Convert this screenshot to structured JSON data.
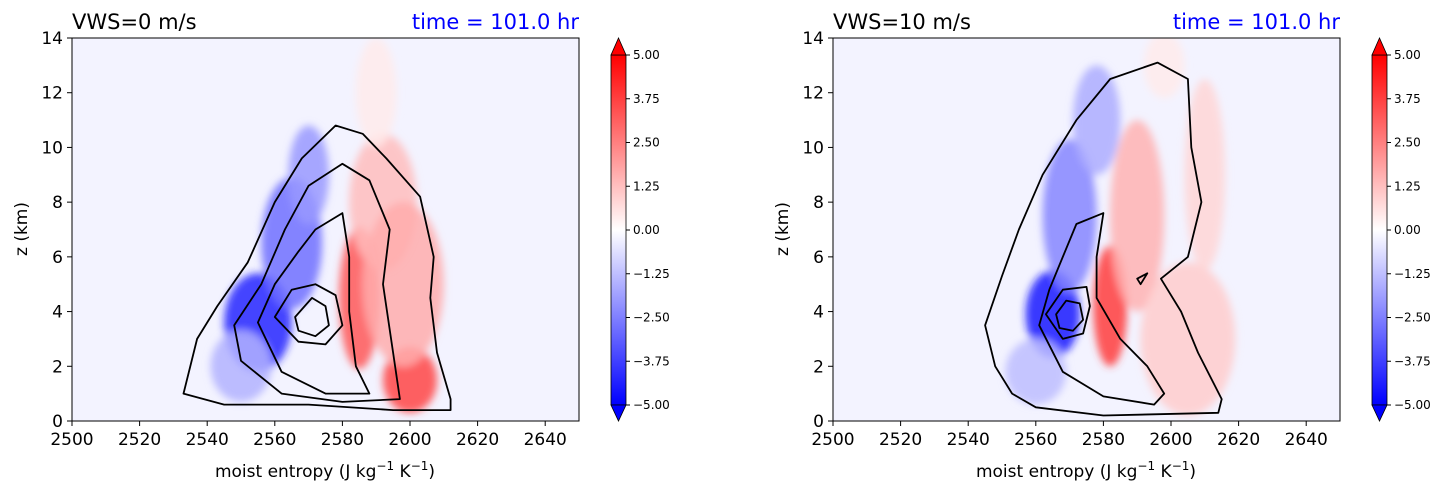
{
  "chart_data": [
    {
      "type": "heatmap",
      "title_left": "VWS=0 m/s",
      "title_right": "time = 101.0 hr",
      "xlabel_main": "moist entropy (J kg",
      "xlabel_sup1": "−1",
      "xlabel_mid": " K",
      "xlabel_sup2": "−1",
      "xlabel_end": ")",
      "ylabel": "z (km)",
      "xlim": [
        2500,
        2650
      ],
      "ylim": [
        0,
        14
      ],
      "xticks": [
        "2500",
        "2520",
        "2540",
        "2560",
        "2580",
        "2600",
        "2620",
        "2640"
      ],
      "yticks": [
        "0",
        "2",
        "4",
        "6",
        "8",
        "10",
        "12",
        "14"
      ],
      "colorbar": {
        "range": [
          -5,
          5
        ],
        "ticks": [
          "5.00",
          "3.75",
          "2.50",
          "1.25",
          "0.00",
          "−1.25",
          "−2.50",
          "−3.75",
          "−5.00"
        ]
      },
      "blobs": [
        {
          "x": 2555,
          "y": 3.6,
          "rx": 10,
          "ry": 1.8,
          "v": -4.3
        },
        {
          "x": 2565,
          "y": 6.5,
          "rx": 9,
          "ry": 2.4,
          "v": -2.8
        },
        {
          "x": 2570,
          "y": 9.0,
          "rx": 6,
          "ry": 1.8,
          "v": -2.0
        },
        {
          "x": 2550,
          "y": 2.0,
          "rx": 9,
          "ry": 1.3,
          "v": -1.5
        },
        {
          "x": 2585,
          "y": 4.5,
          "rx": 6,
          "ry": 2.6,
          "v": 3.3
        },
        {
          "x": 2600,
          "y": 1.5,
          "rx": 8,
          "ry": 1.2,
          "v": 3.6
        },
        {
          "x": 2592,
          "y": 8.0,
          "rx": 10,
          "ry": 2.5,
          "v": 1.3
        },
        {
          "x": 2598,
          "y": 5.0,
          "rx": 12,
          "ry": 3.0,
          "v": 1.6
        },
        {
          "x": 2590,
          "y": 12.0,
          "rx": 6,
          "ry": 2.0,
          "v": 0.4
        }
      ],
      "contours": [
        [
          [
            2533,
            1.0
          ],
          [
            2537,
            3.0
          ],
          [
            2543,
            4.2
          ],
          [
            2552,
            5.8
          ],
          [
            2560,
            8.0
          ],
          [
            2568,
            9.6
          ],
          [
            2578,
            10.8
          ],
          [
            2586,
            10.5
          ],
          [
            2593,
            9.6
          ],
          [
            2603,
            8.2
          ],
          [
            2607,
            6.0
          ],
          [
            2606,
            4.5
          ],
          [
            2608,
            2.5
          ],
          [
            2612,
            0.8
          ],
          [
            2612,
            0.4
          ],
          [
            2595,
            0.4
          ],
          [
            2570,
            0.6
          ],
          [
            2545,
            0.6
          ],
          [
            2533,
            1.0
          ]
        ],
        [
          [
            2548,
            3.5
          ],
          [
            2556,
            5.0
          ],
          [
            2563,
            7.0
          ],
          [
            2570,
            8.6
          ],
          [
            2580,
            9.4
          ],
          [
            2588,
            8.8
          ],
          [
            2594,
            7.0
          ],
          [
            2592,
            5.0
          ],
          [
            2595,
            2.5
          ],
          [
            2597,
            0.8
          ],
          [
            2580,
            0.7
          ],
          [
            2562,
            1.0
          ],
          [
            2550,
            2.2
          ],
          [
            2548,
            3.5
          ]
        ],
        [
          [
            2555,
            3.6
          ],
          [
            2560,
            5.0
          ],
          [
            2567,
            6.2
          ],
          [
            2572,
            7.0
          ],
          [
            2580,
            7.6
          ],
          [
            2582,
            6.0
          ],
          [
            2582,
            4.0
          ],
          [
            2584,
            2.0
          ],
          [
            2588,
            1.0
          ],
          [
            2575,
            1.0
          ],
          [
            2562,
            1.8
          ],
          [
            2555,
            3.6
          ]
        ],
        [
          [
            2560,
            3.8
          ],
          [
            2565,
            4.8
          ],
          [
            2572,
            5.0
          ],
          [
            2578,
            4.6
          ],
          [
            2580,
            3.5
          ],
          [
            2575,
            2.8
          ],
          [
            2567,
            2.9
          ],
          [
            2560,
            3.8
          ]
        ],
        [
          [
            2566,
            3.8
          ],
          [
            2571,
            4.5
          ],
          [
            2575,
            4.2
          ],
          [
            2576,
            3.5
          ],
          [
            2572,
            3.1
          ],
          [
            2567,
            3.3
          ],
          [
            2566,
            3.8
          ]
        ]
      ]
    },
    {
      "type": "heatmap",
      "title_left": "VWS=10 m/s",
      "title_right": "time = 101.0 hr",
      "xlabel_main": "moist entropy (J kg",
      "xlabel_sup1": "−1",
      "xlabel_mid": " K",
      "xlabel_sup2": "−1",
      "xlabel_end": ")",
      "ylabel": "z (km)",
      "xlim": [
        2500,
        2650
      ],
      "ylim": [
        0,
        14
      ],
      "xticks": [
        "2500",
        "2520",
        "2540",
        "2560",
        "2580",
        "2600",
        "2620",
        "2640"
      ],
      "yticks": [
        "0",
        "2",
        "4",
        "6",
        "8",
        "10",
        "12",
        "14"
      ],
      "colorbar": {
        "range": [
          -5,
          5
        ],
        "ticks": [
          "5.00",
          "3.75",
          "2.50",
          "1.25",
          "0.00",
          "−1.25",
          "−2.50",
          "−3.75",
          "−5.00"
        ]
      },
      "blobs": [
        {
          "x": 2565,
          "y": 3.9,
          "rx": 8,
          "ry": 1.6,
          "v": -4.5
        },
        {
          "x": 2570,
          "y": 7.5,
          "rx": 8,
          "ry": 2.8,
          "v": -2.4
        },
        {
          "x": 2578,
          "y": 11.0,
          "rx": 7,
          "ry": 2.0,
          "v": -1.6
        },
        {
          "x": 2560,
          "y": 1.8,
          "rx": 9,
          "ry": 1.2,
          "v": -1.3
        },
        {
          "x": 2582,
          "y": 4.2,
          "rx": 5,
          "ry": 2.2,
          "v": 3.8
        },
        {
          "x": 2590,
          "y": 7.5,
          "rx": 8,
          "ry": 3.5,
          "v": 1.5
        },
        {
          "x": 2605,
          "y": 3.0,
          "rx": 14,
          "ry": 2.8,
          "v": 1.0
        },
        {
          "x": 2610,
          "y": 9.0,
          "rx": 6,
          "ry": 3.5,
          "v": 0.8
        },
        {
          "x": 2598,
          "y": 13.0,
          "rx": 6,
          "ry": 1.2,
          "v": 0.4
        }
      ],
      "contours": [
        [
          [
            2560,
            0.5
          ],
          [
            2553,
            1.0
          ],
          [
            2548,
            2.0
          ],
          [
            2545,
            3.5
          ],
          [
            2550,
            5.3
          ],
          [
            2555,
            7.0
          ],
          [
            2562,
            9.0
          ],
          [
            2572,
            11.0
          ],
          [
            2582,
            12.5
          ],
          [
            2596,
            13.1
          ],
          [
            2605,
            12.5
          ],
          [
            2606,
            10.0
          ],
          [
            2609,
            8.0
          ],
          [
            2605,
            6.0
          ],
          [
            2597,
            5.2
          ],
          [
            2603,
            4.0
          ],
          [
            2608,
            2.5
          ],
          [
            2615,
            0.8
          ],
          [
            2614,
            0.3
          ],
          [
            2580,
            0.2
          ],
          [
            2560,
            0.5
          ]
        ],
        [
          [
            2561,
            3.5
          ],
          [
            2564,
            4.8
          ],
          [
            2568,
            6.0
          ],
          [
            2572,
            7.2
          ],
          [
            2580,
            7.6
          ],
          [
            2578,
            6.0
          ],
          [
            2578,
            4.5
          ],
          [
            2585,
            3.0
          ],
          [
            2593,
            2.0
          ],
          [
            2598,
            1.0
          ],
          [
            2595,
            0.6
          ],
          [
            2580,
            0.9
          ],
          [
            2568,
            1.8
          ],
          [
            2561,
            3.5
          ]
        ],
        [
          [
            2563,
            3.9
          ],
          [
            2568,
            4.8
          ],
          [
            2575,
            4.9
          ],
          [
            2576,
            4.2
          ],
          [
            2574,
            3.2
          ],
          [
            2568,
            3.0
          ],
          [
            2563,
            3.9
          ]
        ],
        [
          [
            2566,
            3.9
          ],
          [
            2569,
            4.4
          ],
          [
            2573,
            4.3
          ],
          [
            2574,
            3.7
          ],
          [
            2571,
            3.3
          ],
          [
            2567,
            3.4
          ],
          [
            2566,
            3.9
          ]
        ],
        [
          [
            2590,
            5.2
          ],
          [
            2593,
            5.4
          ],
          [
            2591,
            5.0
          ],
          [
            2590,
            5.2
          ]
        ]
      ]
    }
  ]
}
